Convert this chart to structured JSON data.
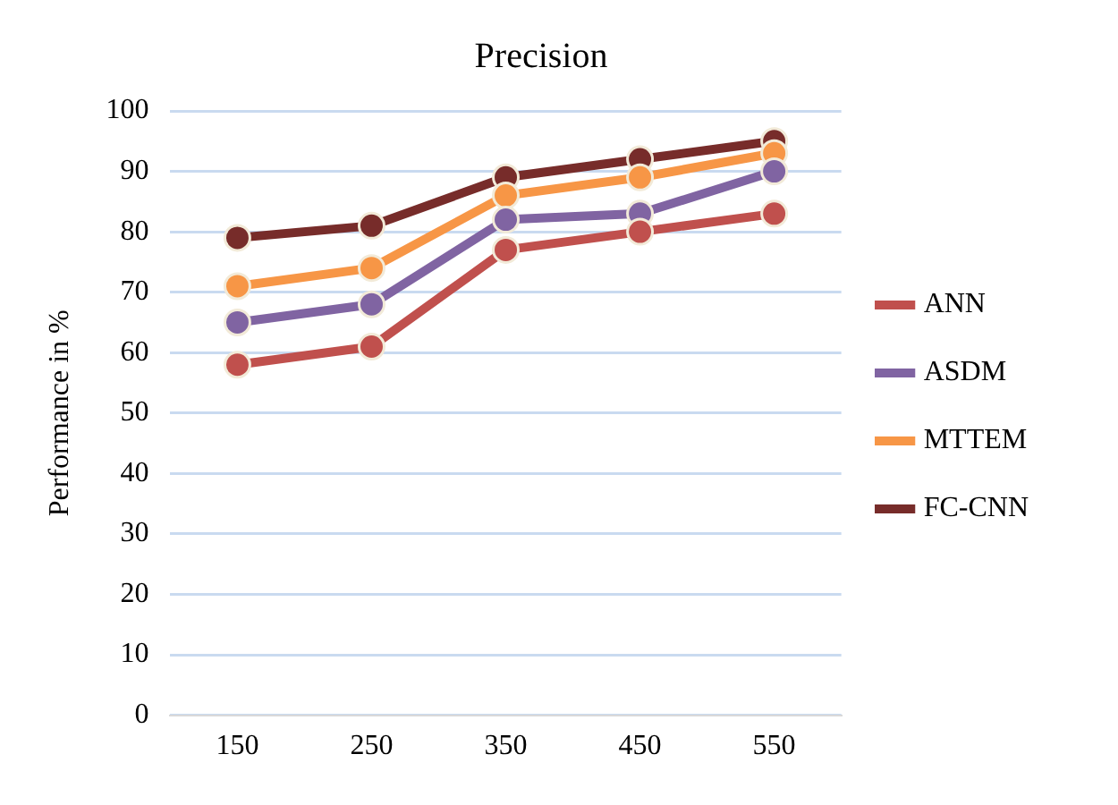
{
  "chart_data": {
    "type": "line",
    "title": "Precision",
    "ylabel": "Performance in %",
    "categories": [
      "150",
      "250",
      "350",
      "450",
      "550"
    ],
    "series": [
      {
        "name": "ANN",
        "color": "#c0504d",
        "values": [
          58,
          61,
          77,
          80,
          83
        ]
      },
      {
        "name": "ASDM",
        "color": "#8064a2",
        "values": [
          65,
          68,
          82,
          83,
          90
        ]
      },
      {
        "name": "MTTEM",
        "color": "#f79646",
        "values": [
          71,
          74,
          86,
          89,
          93
        ]
      },
      {
        "name": "FC-CNN",
        "color": "#772c2a",
        "values": [
          79,
          81,
          89,
          92,
          95
        ]
      }
    ],
    "ylim": [
      0,
      100
    ],
    "yticks": [
      0,
      10,
      20,
      30,
      40,
      50,
      60,
      70,
      80,
      90,
      100
    ],
    "grid": "y",
    "legend": "right",
    "marker": "circle",
    "line_style": "solid"
  }
}
